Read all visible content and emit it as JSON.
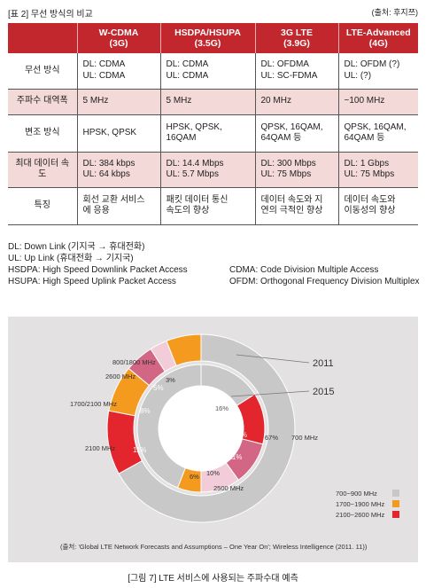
{
  "header": {
    "table_label": "[표 2] 무선 방식의 비교",
    "source": "(출처: 후지쯔)"
  },
  "table": {
    "columns": [
      "",
      "W-CDMA\n(3G)",
      "HSDPA/HSUPA\n(3.5G)",
      "3G LTE\n(3.9G)",
      "LTE-Advanced\n(4G)"
    ],
    "rows": [
      {
        "label": "무선 방식",
        "cells": [
          "DL: CDMA\nUL: CDMA",
          "DL: CDMA\nUL: CDMA",
          "DL: OFDMA\nUL: SC-FDMA",
          "DL: OFDM (?)\nUL: (?)"
        ]
      },
      {
        "label": "주파수 대역폭",
        "cells": [
          "5 MHz",
          "5 MHz",
          "20 MHz",
          "~100 MHz"
        ]
      },
      {
        "label": "변조 방식",
        "cells": [
          "HPSK, QPSK",
          "HPSK, QPSK,\n16QAM",
          "QPSK, 16QAM,\n64QAM 등",
          "QPSK, 16QAM,\n64QAM 등"
        ]
      },
      {
        "label": "최대 데이터 속\n도",
        "cells": [
          "DL: 384 kbps\nUL: 64 kbps",
          "DL: 14.4 Mbps\nUL: 5.7 Mbps",
          "DL: 300 Mbps\nUL: 75 Mbps",
          "DL: 1 Gbps\nUL: 75 Mbps"
        ]
      },
      {
        "label": "특징",
        "cells": [
          "회선 교환 서비스\n에 응용",
          "패킷 데이터 통신\n속도의 향상",
          "데이터 속도와 지\n연의 극적인 향상",
          "데이터 속도와\n이동성의 향상"
        ]
      }
    ]
  },
  "notes": {
    "dl": "DL: Down Link (기지국 → 휴대전화)",
    "ul": "UL: Up Link (휴대전화 → 기지국)",
    "hsdpa": "HSDPA: High Speed Downlink Packet Access",
    "cdma": "CDMA: Code Division Multiple Access",
    "hsupa": "HSUPA: High Speed Uplink Packet Access",
    "ofdm": "OFDM: Orthogonal Frequency Division Multiplex"
  },
  "figure": {
    "caption": "[그림 7] LTE 서비스에 사용되는 주파수대 예측",
    "source": "(출처: 'Global LTE Network Forecasts and Assumptions – One Year On'; Wireless Intelligence (2011. 11))",
    "chart_data": {
      "type": "pie",
      "rings": [
        {
          "name": "2011",
          "slices": [
            {
              "label": "700 MHz",
              "pct_label": "67%",
              "value": 67,
              "color": "#c8c8c8"
            },
            {
              "label": "2100 MHz",
              "pct_label": "11%",
              "value": 11,
              "color": "#e3262e"
            },
            {
              "label": "1700/2100 MHz",
              "pct_label": "8%",
              "value": 8,
              "color": "#f39a1f"
            },
            {
              "label": "2600 MHz",
              "pct_label": "5%",
              "value": 5,
              "color": "#d36684"
            },
            {
              "label": "",
              "pct_label": "3%",
              "value": 3,
              "color": "#f2cdd9"
            },
            {
              "label": "800/1800 MHz",
              "pct_label": "",
              "value": 6,
              "color": "#f39a1f"
            }
          ]
        },
        {
          "name": "2015",
          "slices": [
            {
              "label": "",
              "pct_label": "16%",
              "value": 16,
              "color": "#c8c8c8"
            },
            {
              "label": "",
              "pct_label": "13%",
              "value": 13,
              "color": "#e3262e"
            },
            {
              "label": "",
              "pct_label": "11%",
              "value": 11,
              "color": "#d36684"
            },
            {
              "label": "",
              "pct_label": "10%",
              "value": 10,
              "color": "#f2cdd9"
            },
            {
              "label": "",
              "pct_label": "6%",
              "value": 6,
              "color": "#f39a1f"
            },
            {
              "label": "2500 MHz",
              "pct_label": "",
              "value": 44,
              "color": "#c8c8c8"
            }
          ]
        }
      ],
      "legend": [
        {
          "label": "700~900 MHz",
          "color": "#c8c8c8"
        },
        {
          "label": "1700~1900 MHz",
          "color": "#f39a1f"
        },
        {
          "label": "2100~2600 MHz",
          "color": "#e3262e"
        }
      ]
    }
  }
}
